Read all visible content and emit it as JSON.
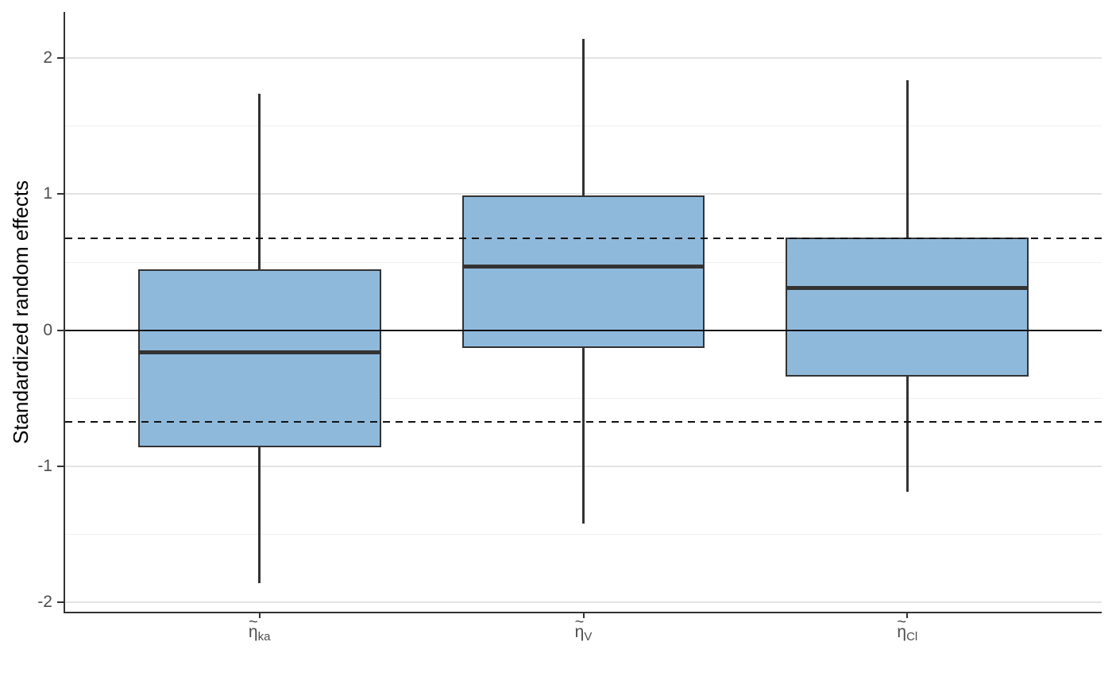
{
  "chart_data": {
    "type": "boxplot",
    "title": "",
    "xlabel": "",
    "ylabel": "Standardized random effects",
    "ylim": [
      -2.07,
      2.34
    ],
    "grid": "on",
    "legend": "none",
    "y_tick_values": [
      2,
      1,
      0,
      -1,
      -2
    ],
    "y_tick_labels": [
      "2",
      "1",
      "0",
      "-1",
      "-2"
    ],
    "y_minor_tick_values": [
      1.5,
      0.5,
      -0.5,
      -1.5
    ],
    "categories": [
      {
        "base": "η",
        "accent": "~",
        "sub": "ka"
      },
      {
        "base": "η",
        "accent": "~",
        "sub": "V"
      },
      {
        "base": "η",
        "accent": "~",
        "sub": "Cl"
      }
    ],
    "boxes": [
      {
        "name": "eta_ka",
        "whisker_low": -1.86,
        "q1": -0.86,
        "median": -0.16,
        "q3": 0.45,
        "whisker_high": 1.74
      },
      {
        "name": "eta_V",
        "whisker_low": -1.42,
        "q1": -0.13,
        "median": 0.47,
        "q3": 0.99,
        "whisker_high": 2.14
      },
      {
        "name": "eta_Cl",
        "whisker_low": -1.19,
        "q1": -0.34,
        "median": 0.31,
        "q3": 0.68,
        "whisker_high": 1.84
      }
    ],
    "reference_lines": {
      "solid": [
        0
      ],
      "dashed": [
        0.674,
        -0.674
      ]
    },
    "colors": {
      "box_fill": "#8FB9DB",
      "box_stroke": "#333333",
      "median_stroke": "#333333",
      "whisker_stroke": "#333333",
      "ref_line": "#111111",
      "grid_major": "#e3e3e3",
      "grid_minor": "#efefef",
      "axis_line": "#333333",
      "tick_mark": "#333333",
      "tick_text": "#4d4d4d",
      "axis_title_text": "#000000",
      "background": "#ffffff"
    }
  }
}
